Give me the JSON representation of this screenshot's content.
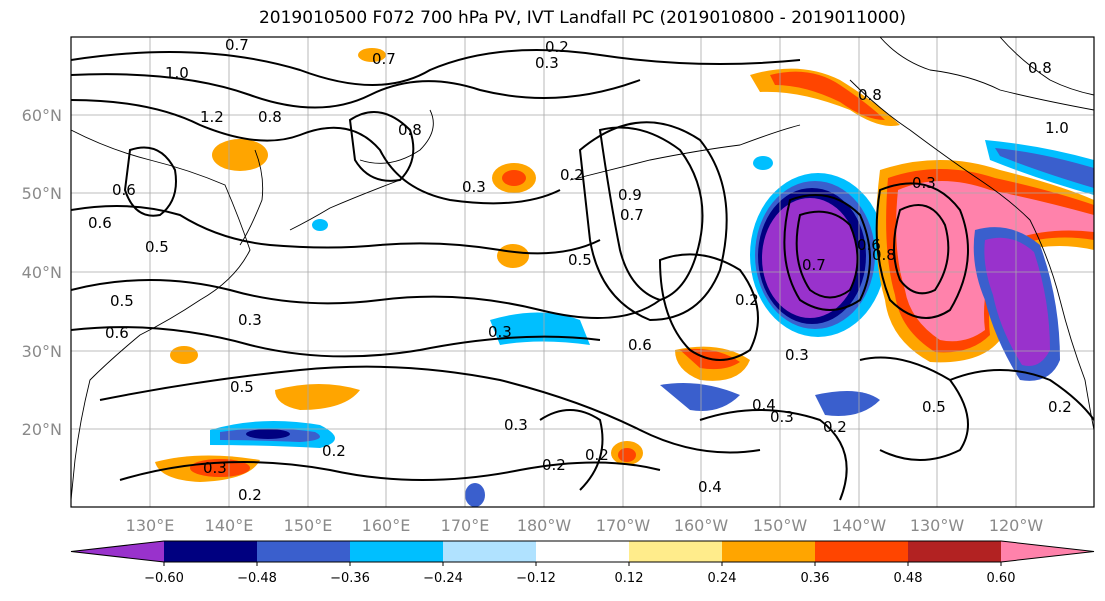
{
  "title": "2019010500 F072 700 hPa PV, IVT Landfall PC (2019010800 - 2019011000)",
  "lat_labels": [
    "60°N",
    "50°N",
    "40°N",
    "30°N",
    "20°N"
  ],
  "lon_labels": [
    "130°E",
    "140°E",
    "150°E",
    "160°E",
    "170°E",
    "180°W",
    "170°W",
    "160°W",
    "150°W",
    "140°W",
    "130°W",
    "120°W"
  ],
  "colorbar": {
    "ticks": [
      "−0.60",
      "−0.48",
      "−0.36",
      "−0.24",
      "−0.12",
      "0.12",
      "0.24",
      "0.36",
      "0.48",
      "0.60"
    ],
    "colors": [
      "#9932CC",
      "#000080",
      "#3A5FCD",
      "#00BFFF",
      "#B0E2FF",
      "#FFFFFF",
      "#FFEC8B",
      "#FFA500",
      "#FF4500",
      "#B22222",
      "#FF82AB"
    ]
  },
  "contour_labels": [
    "0.7",
    "1.0",
    "1.2",
    "0.8",
    "0.7",
    "0.2",
    "0.3",
    "0.8",
    "0.3",
    "0.6",
    "0.6",
    "0.5",
    "0.5",
    "0.3",
    "0.6",
    "0.3",
    "0.2",
    "0.3",
    "0.2",
    "0.7",
    "0.6",
    "0.9",
    "0.5",
    "0.2",
    "0.6",
    "0.3",
    "0.4",
    "0.3",
    "0.2",
    "0.7",
    "0.8",
    "0.2",
    "0.5",
    "0.2",
    "0.4",
    "0.5",
    "0.8",
    "1.0",
    "0.8",
    "0.3",
    "0.3",
    "0.2",
    "0.2"
  ]
}
